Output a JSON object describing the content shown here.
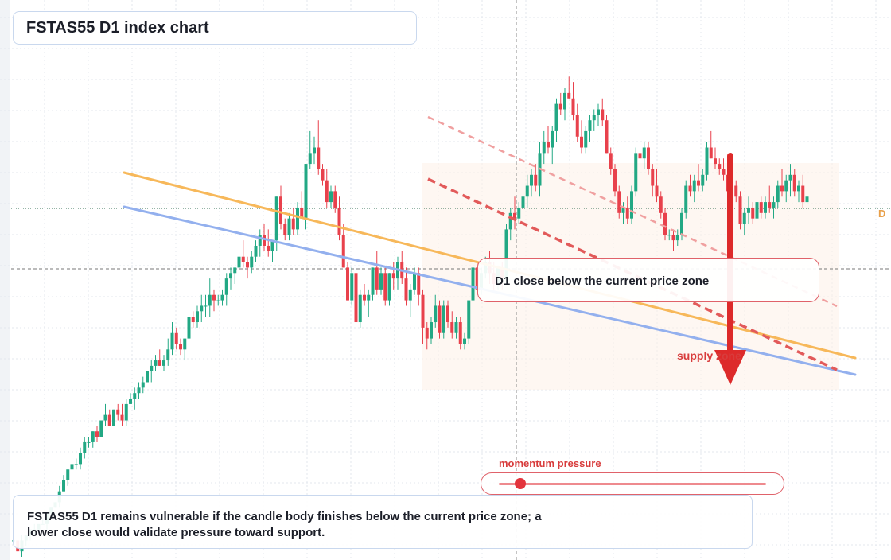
{
  "title": "FSTAS55 D1 index chart",
  "callout": {
    "text": "D1 close below the current price zone"
  },
  "zone_label": "supply zone",
  "momentum": {
    "label": "momentum pressure",
    "level": 0.08
  },
  "summary": {
    "text": "FSTAS55 D1 remains vulnerable if the candle body finishes below the current price zone; a lower close would validate pressure toward support."
  },
  "price_tag": "D",
  "colors": {
    "bull": "#22a884",
    "bear": "#e8414c",
    "trendline_orange": "#f7b85a",
    "trendline_blue": "#93b0ee",
    "bearish_channel": "#e25a5a",
    "arrow": "#dd2a2a",
    "grid": "#e3e7ee"
  },
  "chart_data": {
    "type": "candlestick",
    "ylim": [
      0,
      100
    ],
    "candles": [
      [
        3,
        4,
        3,
        3
      ],
      [
        3,
        3,
        1,
        1
      ],
      [
        1,
        4,
        0,
        3
      ],
      [
        3,
        4,
        2,
        4
      ],
      [
        4,
        5,
        3,
        5
      ],
      [
        5,
        6,
        4,
        5
      ],
      [
        5,
        6,
        5,
        6
      ],
      [
        6,
        7,
        6,
        6
      ],
      [
        6,
        8,
        5,
        8
      ],
      [
        8,
        9,
        7,
        9
      ],
      [
        9,
        10,
        9,
        10
      ],
      [
        10,
        13,
        9,
        12
      ],
      [
        12,
        15,
        12,
        14
      ],
      [
        14,
        16,
        13,
        16
      ],
      [
        16,
        17,
        15,
        17
      ],
      [
        17,
        18,
        16,
        17
      ],
      [
        17,
        20,
        16,
        19
      ],
      [
        19,
        22,
        18,
        21
      ],
      [
        21,
        22,
        20,
        21
      ],
      [
        21,
        23,
        20,
        23
      ],
      [
        23,
        24,
        21,
        22
      ],
      [
        22,
        25,
        22,
        25
      ],
      [
        25,
        28,
        24,
        26
      ],
      [
        26,
        27,
        24,
        24
      ],
      [
        24,
        27,
        24,
        27
      ],
      [
        27,
        28,
        25,
        26
      ],
      [
        26,
        28,
        24,
        25
      ],
      [
        25,
        29,
        24,
        28
      ],
      [
        28,
        30,
        28,
        29
      ],
      [
        29,
        31,
        27,
        30
      ],
      [
        30,
        32,
        29,
        31
      ],
      [
        31,
        33,
        30,
        32
      ],
      [
        32,
        34,
        32,
        34
      ],
      [
        34,
        36,
        32,
        35
      ],
      [
        35,
        37,
        34,
        36
      ],
      [
        36,
        38,
        35,
        35
      ],
      [
        35,
        37,
        34,
        36
      ],
      [
        36,
        40,
        35,
        38
      ],
      [
        38,
        43,
        37,
        41
      ],
      [
        41,
        42,
        38,
        39
      ],
      [
        39,
        40,
        37,
        38
      ],
      [
        38,
        40,
        36,
        40
      ],
      [
        40,
        45,
        39,
        44
      ],
      [
        44,
        45,
        42,
        43
      ],
      [
        43,
        46,
        42,
        45
      ],
      [
        45,
        48,
        43,
        46
      ],
      [
        46,
        48,
        44,
        46
      ],
      [
        46,
        51,
        44,
        48
      ],
      [
        48,
        49,
        45,
        47
      ],
      [
        47,
        48,
        46,
        47
      ],
      [
        47,
        49,
        46,
        48
      ],
      [
        48,
        52,
        46,
        51
      ],
      [
        51,
        53,
        49,
        52
      ],
      [
        52,
        53,
        50,
        53
      ],
      [
        53,
        56,
        52,
        55
      ],
      [
        55,
        58,
        53,
        54
      ],
      [
        54,
        55,
        51,
        53
      ],
      [
        53,
        56,
        52,
        55
      ],
      [
        55,
        58,
        54,
        57
      ],
      [
        57,
        60,
        55,
        59
      ],
      [
        59,
        61,
        56,
        57
      ],
      [
        57,
        60,
        55,
        56
      ],
      [
        56,
        58,
        54,
        58
      ],
      [
        58,
        66,
        56,
        66
      ],
      [
        66,
        68,
        60,
        61
      ],
      [
        61,
        62,
        58,
        59
      ],
      [
        59,
        63,
        58,
        62
      ],
      [
        62,
        64,
        59,
        60
      ],
      [
        60,
        65,
        59,
        64
      ],
      [
        64,
        67,
        62,
        62
      ],
      [
        62,
        72,
        60,
        72
      ],
      [
        72,
        78,
        71,
        74
      ],
      [
        74,
        77,
        72,
        75
      ],
      [
        75,
        80,
        70,
        71
      ],
      [
        71,
        72,
        68,
        69
      ],
      [
        69,
        71,
        64,
        65
      ],
      [
        65,
        68,
        64,
        67
      ],
      [
        67,
        68,
        63,
        64
      ],
      [
        64,
        66,
        58,
        59
      ],
      [
        59,
        61,
        53,
        53
      ],
      [
        53,
        54,
        47,
        47
      ],
      [
        47,
        53,
        46,
        52
      ],
      [
        52,
        53,
        42,
        43
      ],
      [
        43,
        49,
        42,
        48
      ],
      [
        48,
        50,
        46,
        47
      ],
      [
        47,
        49,
        44,
        48
      ],
      [
        48,
        53,
        47,
        53
      ],
      [
        53,
        56,
        48,
        49
      ],
      [
        49,
        53,
        48,
        52
      ],
      [
        52,
        53,
        46,
        47
      ],
      [
        47,
        52,
        46,
        52
      ],
      [
        52,
        54,
        49,
        51
      ],
      [
        51,
        55,
        49,
        54
      ],
      [
        54,
        56,
        50,
        51
      ],
      [
        51,
        53,
        46,
        47
      ],
      [
        47,
        50,
        44,
        49
      ],
      [
        49,
        53,
        48,
        52
      ],
      [
        52,
        53,
        46,
        48
      ],
      [
        48,
        49,
        39,
        42
      ],
      [
        42,
        43,
        38,
        40
      ],
      [
        40,
        44,
        39,
        43
      ],
      [
        43,
        48,
        42,
        46
      ],
      [
        46,
        47,
        40,
        41
      ],
      [
        41,
        47,
        40,
        46
      ],
      [
        46,
        47,
        42,
        43
      ],
      [
        43,
        45,
        40,
        41
      ],
      [
        41,
        44,
        40,
        43
      ],
      [
        43,
        44,
        38,
        39
      ],
      [
        39,
        41,
        38,
        40
      ],
      [
        40,
        47,
        39,
        47
      ],
      [
        47,
        54,
        46,
        53
      ],
      [
        53,
        54,
        48,
        49
      ],
      [
        49,
        53,
        48,
        52
      ],
      [
        52,
        55,
        51,
        54
      ],
      [
        54,
        56,
        50,
        52
      ],
      [
        52,
        54,
        49,
        50
      ],
      [
        50,
        53,
        49,
        53
      ],
      [
        53,
        54,
        49,
        51
      ],
      [
        51,
        61,
        50,
        60
      ],
      [
        60,
        64,
        58,
        63
      ],
      [
        63,
        66,
        60,
        62
      ],
      [
        62,
        65,
        61,
        64
      ],
      [
        64,
        67,
        62,
        66
      ],
      [
        66,
        70,
        64,
        68
      ],
      [
        68,
        71,
        66,
        70
      ],
      [
        70,
        72,
        67,
        68
      ],
      [
        68,
        76,
        66,
        74
      ],
      [
        74,
        78,
        72,
        76
      ],
      [
        76,
        79,
        74,
        75
      ],
      [
        75,
        79,
        72,
        78
      ],
      [
        78,
        84,
        76,
        83
      ],
      [
        83,
        85,
        81,
        82
      ],
      [
        82,
        86,
        80,
        85
      ],
      [
        85,
        88,
        84,
        84
      ],
      [
        84,
        87,
        80,
        81
      ],
      [
        81,
        83,
        76,
        77
      ],
      [
        77,
        80,
        74,
        75
      ],
      [
        75,
        79,
        74,
        78
      ],
      [
        78,
        81,
        76,
        80
      ],
      [
        80,
        82,
        78,
        81
      ],
      [
        81,
        83,
        79,
        82
      ],
      [
        82,
        84,
        79,
        80
      ],
      [
        80,
        81,
        74,
        74
      ],
      [
        74,
        75,
        70,
        71
      ],
      [
        71,
        72,
        66,
        67
      ],
      [
        67,
        68,
        62,
        63
      ],
      [
        63,
        65,
        61,
        64
      ],
      [
        64,
        66,
        61,
        62
      ],
      [
        62,
        68,
        61,
        67
      ],
      [
        67,
        75,
        66,
        74
      ],
      [
        74,
        77,
        72,
        73
      ],
      [
        73,
        76,
        71,
        75
      ],
      [
        75,
        76,
        70,
        71
      ],
      [
        71,
        72,
        66,
        68
      ],
      [
        68,
        71,
        65,
        66
      ],
      [
        66,
        67,
        62,
        63
      ],
      [
        63,
        64,
        58,
        59
      ],
      [
        59,
        60,
        58,
        59
      ],
      [
        59,
        60,
        56,
        58
      ],
      [
        58,
        60,
        57,
        59
      ],
      [
        59,
        64,
        58,
        63
      ],
      [
        63,
        69,
        62,
        68
      ],
      [
        68,
        70,
        66,
        67
      ],
      [
        67,
        70,
        65,
        69
      ],
      [
        69,
        72,
        67,
        68
      ],
      [
        68,
        71,
        67,
        70
      ],
      [
        70,
        76,
        69,
        75
      ],
      [
        75,
        78,
        73,
        73
      ],
      [
        73,
        75,
        71,
        72
      ],
      [
        72,
        73,
        70,
        71
      ],
      [
        71,
        73,
        69,
        70
      ],
      [
        70,
        71,
        66,
        67
      ],
      [
        67,
        69,
        64,
        68
      ],
      [
        68,
        69,
        65,
        66
      ],
      [
        66,
        67,
        60,
        61
      ],
      [
        61,
        64,
        59,
        63
      ],
      [
        63,
        66,
        61,
        64
      ],
      [
        64,
        65,
        61,
        62
      ],
      [
        62,
        66,
        61,
        65
      ],
      [
        65,
        66,
        62,
        63
      ],
      [
        63,
        66,
        62,
        65
      ],
      [
        65,
        68,
        63,
        64
      ],
      [
        64,
        66,
        62,
        65
      ],
      [
        65,
        69,
        64,
        68
      ],
      [
        68,
        71,
        66,
        67
      ],
      [
        67,
        70,
        65,
        69
      ],
      [
        69,
        72,
        66,
        70
      ],
      [
        70,
        71,
        66,
        67
      ],
      [
        67,
        69,
        65,
        68
      ],
      [
        68,
        70,
        64,
        65
      ],
      [
        65,
        68,
        61,
        66
      ]
    ]
  }
}
